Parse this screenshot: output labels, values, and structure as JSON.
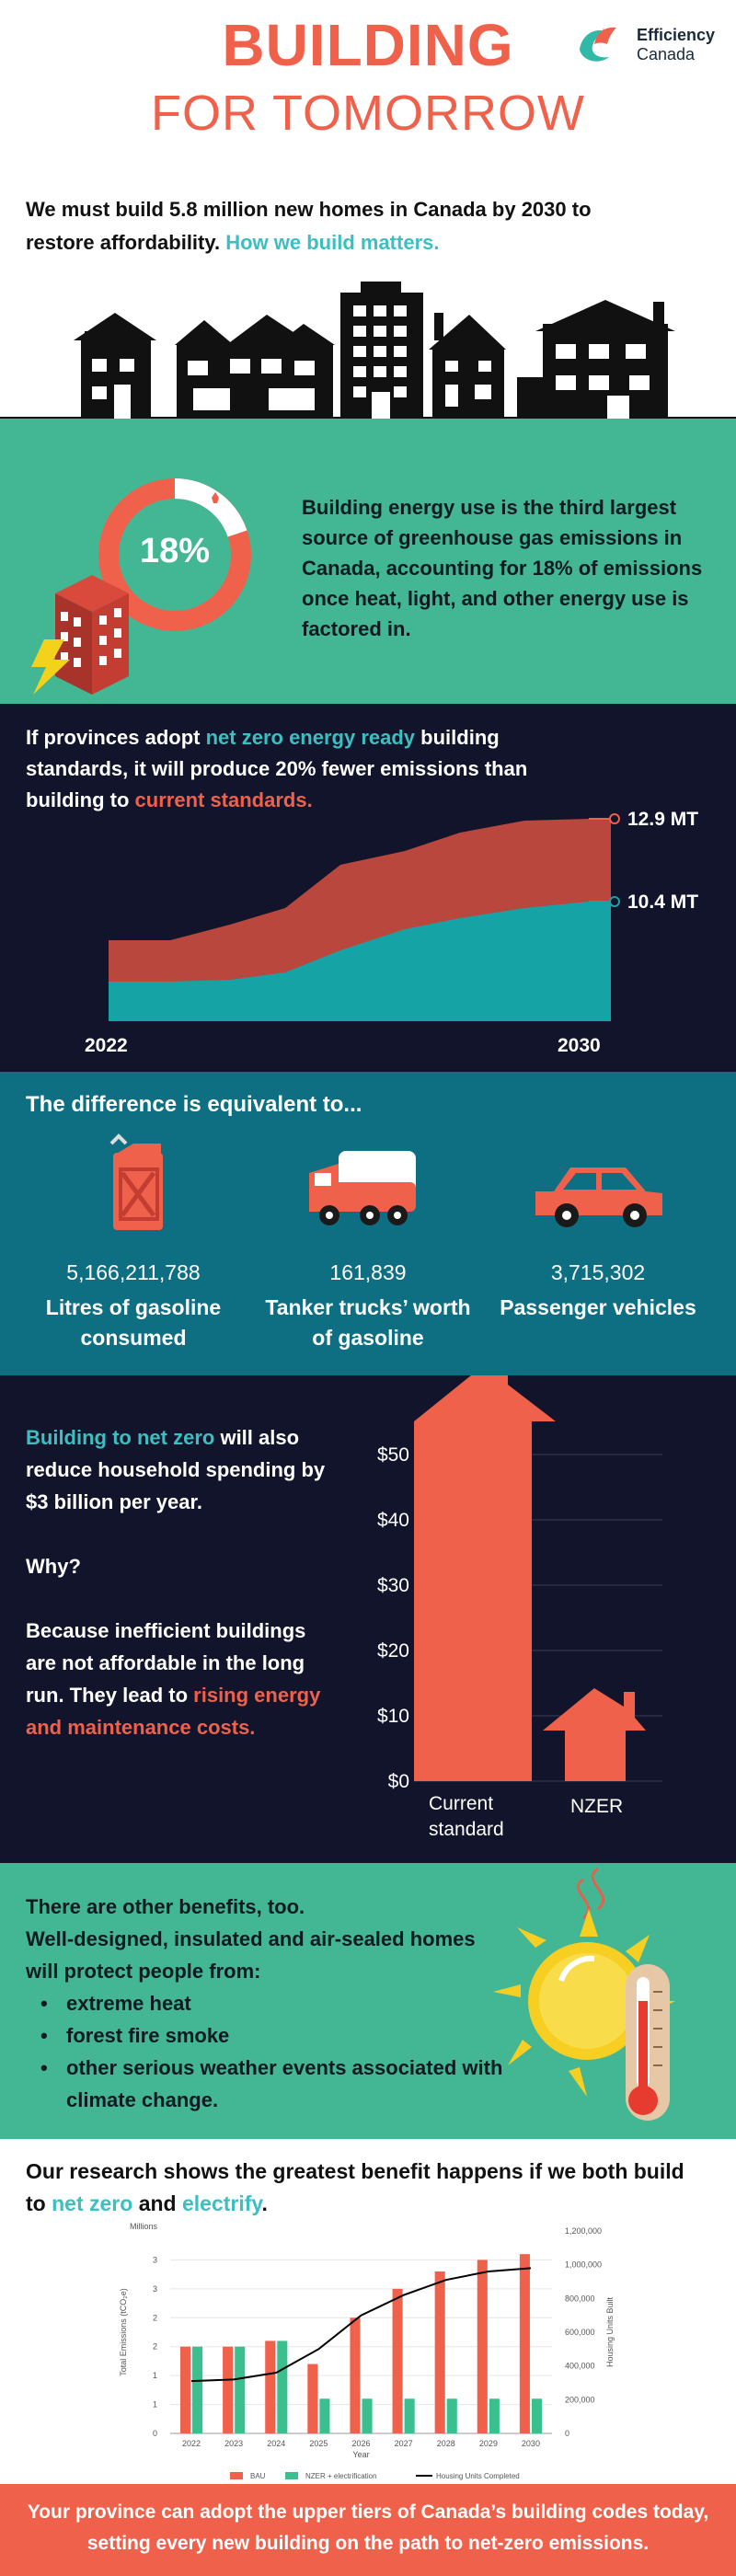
{
  "header": {
    "title_line1": "BUILDING",
    "title_line2": "FOR TOMORROW",
    "logo_name": "Efficiency",
    "logo_sub": "Canada",
    "intro_main": "We must build 5.8 million new homes in Canada by 2030 to restore affordability.",
    "intro_highlight": "How we build matters."
  },
  "stat": {
    "percent": "18%",
    "text": "Building energy use is the third largest source of greenhouse gas emissions in Canada, accounting for 18% of emissions once heat, light, and other energy use is factored in."
  },
  "emissions": {
    "text_1": "If provinces adopt",
    "text_hl1": "net zero energy ready",
    "text_2": "building standards, it will produce 20% fewer emissions than building to",
    "text_hl2": "current standards.",
    "label_high": "12.9 MT",
    "label_low": "10.4 MT",
    "x_start": "2022",
    "x_end": "2030"
  },
  "equivalents": {
    "heading": "The difference is equivalent to...",
    "items": [
      {
        "value": "5,166,211,788",
        "label": "Litres of gasoline consumed",
        "icon": "gas-can-icon"
      },
      {
        "value": "161,839",
        "label": "Tanker trucks’ worth of gasoline",
        "icon": "truck-icon"
      },
      {
        "value": "3,715,302",
        "label": "Passenger vehicles",
        "icon": "car-icon"
      }
    ]
  },
  "spending": {
    "hl1": "Building to net zero",
    "t1": "will also reduce household spending by $3 billion per year.",
    "t2": "Why?",
    "t3": "Because inefficient buildings are not affordable in the long run. They lead to",
    "hl2": "rising energy and maintenance costs.",
    "y_ticks": [
      "$50",
      "$40",
      "$30",
      "$20",
      "$10",
      "$0"
    ],
    "bar1_label_a": "Current",
    "bar1_label_b": "standard",
    "bar2_label": "NZER"
  },
  "benefits": {
    "line1": "There are other benefits, too.",
    "line2": "Well-designed, insulated and air-sealed homes will protect people from:",
    "items": [
      "extreme heat",
      "forest fire smoke",
      "other serious weather events associated with climate change."
    ]
  },
  "research": {
    "text_1": "Our research shows the greatest benefit happens if we both build to",
    "hl1": "net zero",
    "text_2": "and",
    "hl2": "electrify",
    "text_3": "."
  },
  "chart_data": {
    "type": "bar",
    "categories": [
      "2022",
      "2023",
      "2024",
      "2025",
      "2026",
      "2027",
      "2028",
      "2029",
      "2030"
    ],
    "series": [
      {
        "name": "BAU",
        "values": [
          1.5,
          1.5,
          1.6,
          1.2,
          2.0,
          2.5,
          2.8,
          3.0,
          3.1
        ],
        "color": "#f0614c"
      },
      {
        "name": "NZER + electrification",
        "values": [
          1.5,
          1.5,
          1.6,
          0.6,
          0.6,
          0.6,
          0.6,
          0.6,
          0.6
        ],
        "color": "#3cbf8f"
      },
      {
        "name": "Housing Units Completed",
        "type": "line",
        "axis": "right",
        "values": [
          310000,
          320000,
          360000,
          500000,
          700000,
          820000,
          910000,
          960000,
          980000
        ],
        "color": "#000000"
      }
    ],
    "xlabel": "Year",
    "ylabel": "Total Emissions (tCO₂e)",
    "y_unit_label": "Millions",
    "ylabel_right": "Housing Units Built",
    "ylim": [
      0,
      3.5
    ],
    "y_ticks": [
      "0",
      "1",
      "1",
      "2",
      "2",
      "3",
      "3"
    ],
    "ylim_right": [
      0,
      1200000
    ],
    "y_ticks_right": [
      "0",
      "200,000",
      "400,000",
      "600,000",
      "800,000",
      "1,000,000",
      "1,200,000"
    ],
    "legend_position": "bottom"
  },
  "footer": {
    "text": "Your province can adopt the upper tiers of Canada’s building codes today, setting every new building on the path to net-zero emissions."
  }
}
